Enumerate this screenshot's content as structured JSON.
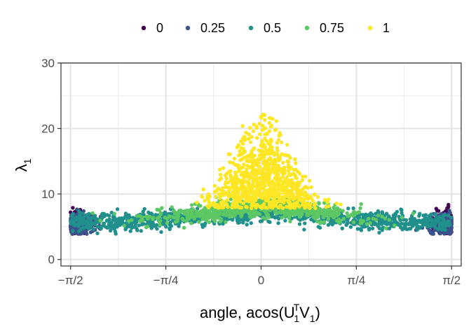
{
  "chart_data": {
    "type": "scatter",
    "title": "",
    "xlabel_main": "angle, acos(",
    "xlabel_U": "U",
    "xlabel_U_sup": "T",
    "xlabel_U_sub": "1",
    "xlabel_V": "V",
    "xlabel_V_sub": "1",
    "xlabel_close": ")",
    "ylabel_main": "λ",
    "ylabel_sub": "1",
    "xlim": [
      -1.65,
      1.65
    ],
    "ylim": [
      -1,
      30
    ],
    "x_ticks": [
      {
        "value": -1.5708,
        "label": "−π/2"
      },
      {
        "value": -0.7854,
        "label": "−π/4"
      },
      {
        "value": 0,
        "label": "0"
      },
      {
        "value": 0.7854,
        "label": "π/4"
      },
      {
        "value": 1.5708,
        "label": "π/2"
      }
    ],
    "y_ticks": [
      {
        "value": 0,
        "label": "0"
      },
      {
        "value": 10,
        "label": "10"
      },
      {
        "value": 20,
        "label": "20"
      },
      {
        "value": 30,
        "label": "30"
      }
    ],
    "grid": true,
    "legend_position": "top",
    "series": [
      {
        "name": "0",
        "color": "#440154"
      },
      {
        "name": "0.25",
        "color": "#3B528B"
      },
      {
        "name": "0.5",
        "color": "#21908C"
      },
      {
        "name": "0.75",
        "color": "#5DC863"
      },
      {
        "name": "1",
        "color": "#FDE725"
      }
    ]
  }
}
